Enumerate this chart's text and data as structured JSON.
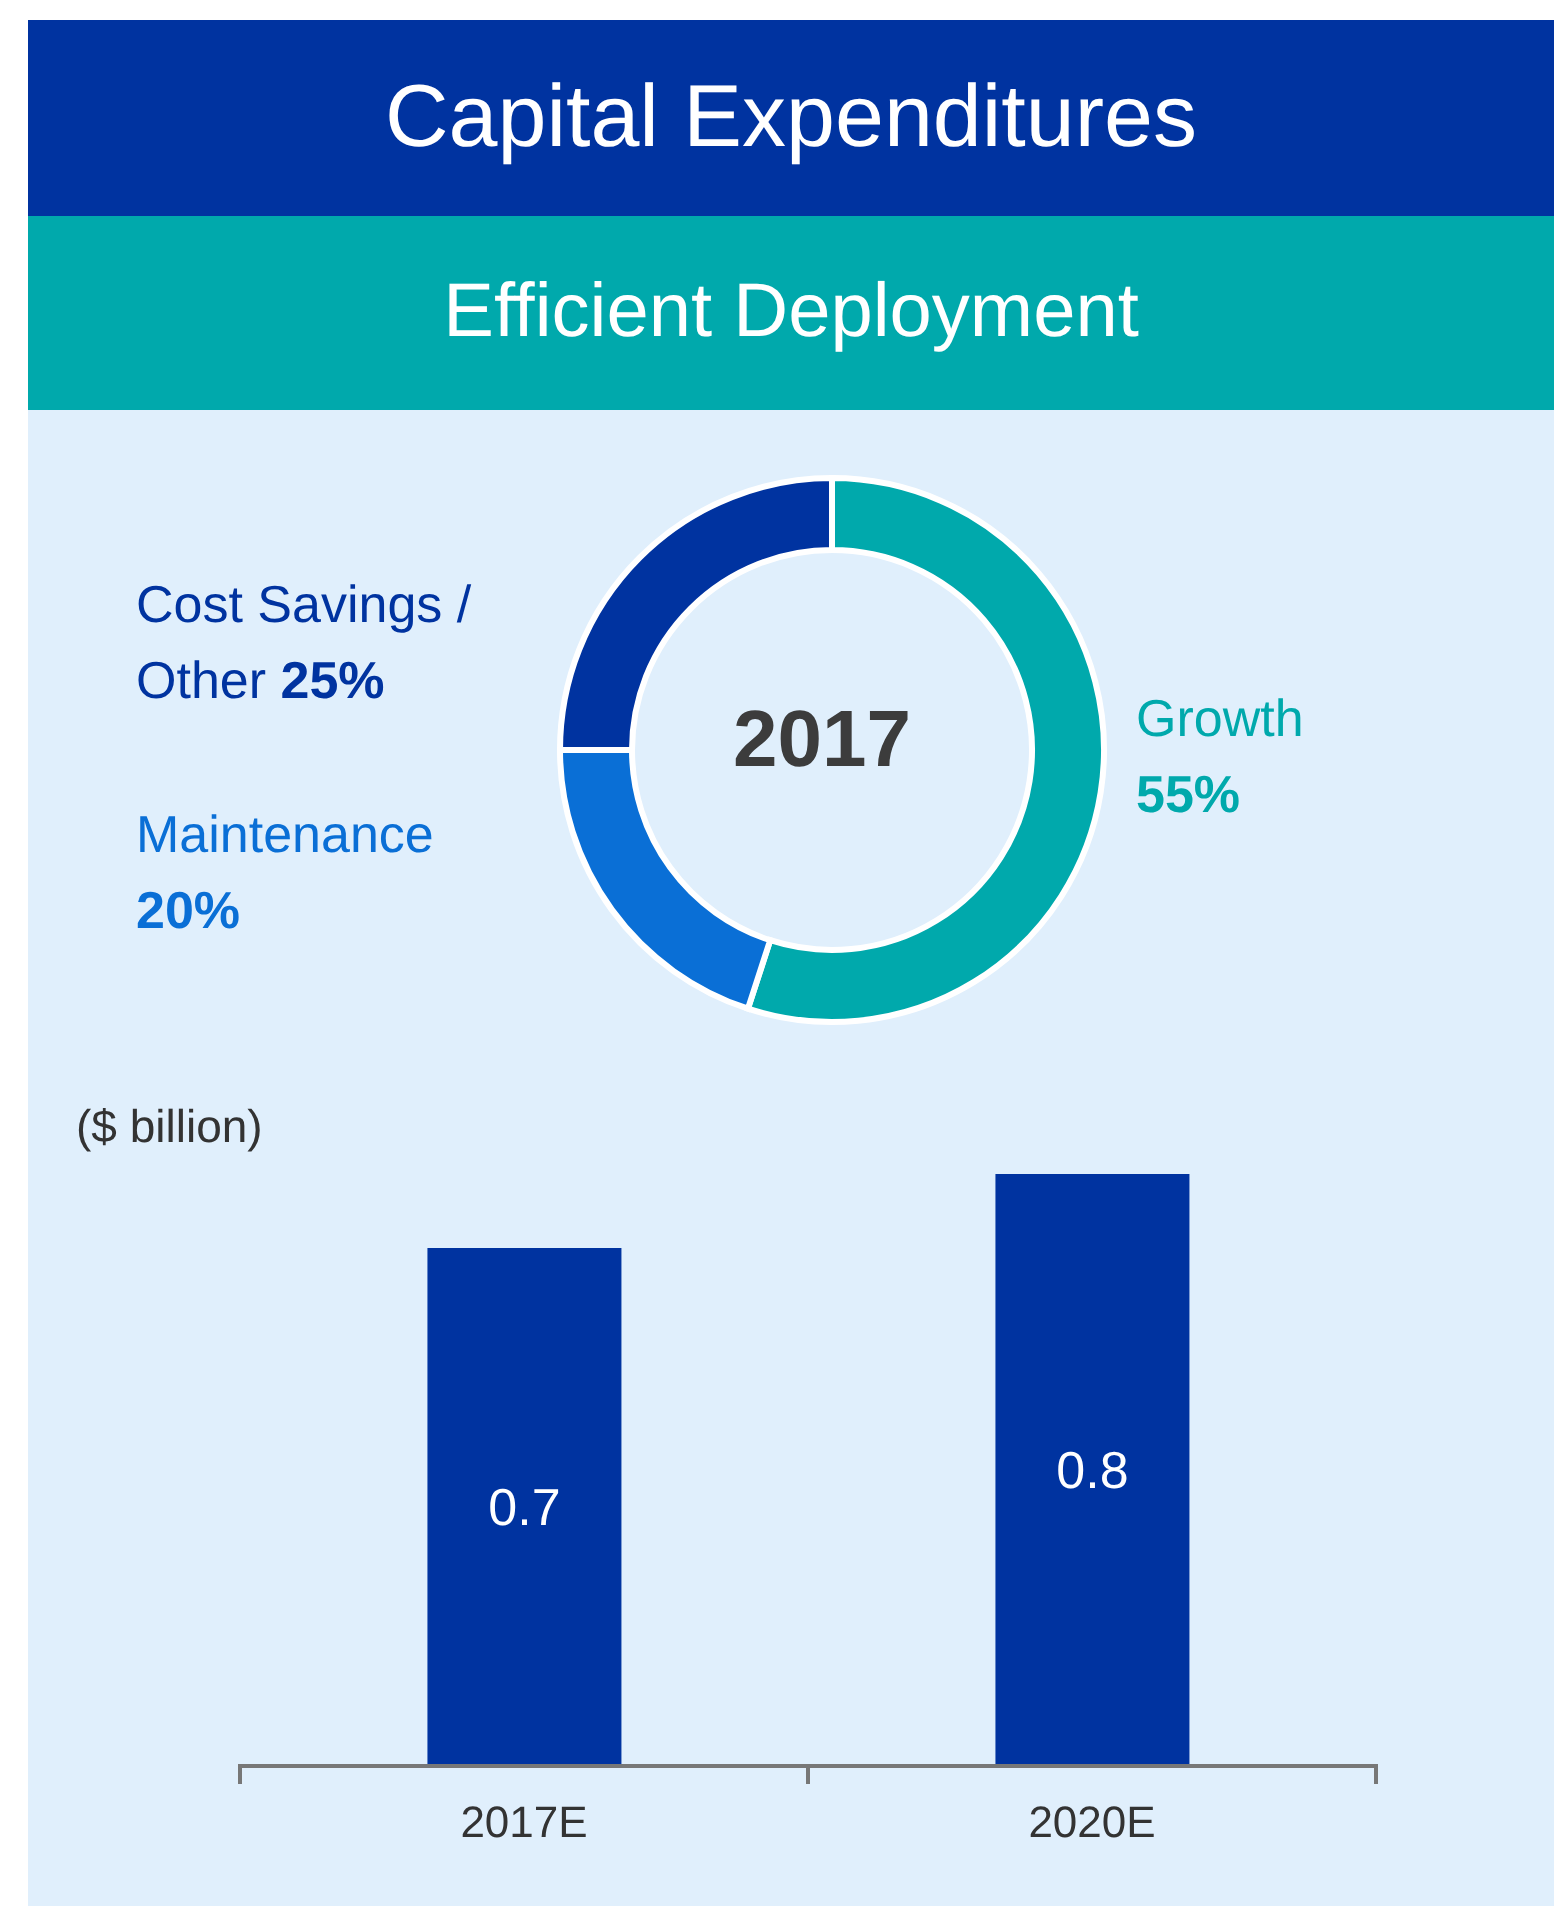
{
  "chart_data": [
    {
      "type": "donut",
      "title": "Capital Expenditures",
      "subtitle": "Efficient Deployment",
      "categories": [
        "Growth",
        "Maintenance",
        "Cost Savings / Other"
      ],
      "values": [
        55,
        20,
        25
      ],
      "colors": [
        "#00a9ac",
        "#0a6fd6",
        "#0033a0"
      ],
      "value_labels": [
        "55%",
        "20%",
        "25%"
      ],
      "annotations": [
        "2017"
      ]
    },
    {
      "type": "bar",
      "ylabel": "($ billion)",
      "categories": [
        "2017E",
        "2020E"
      ],
      "values": [
        0.7,
        0.8
      ],
      "color": "#0033a0",
      "data_labels": true
    }
  ]
}
